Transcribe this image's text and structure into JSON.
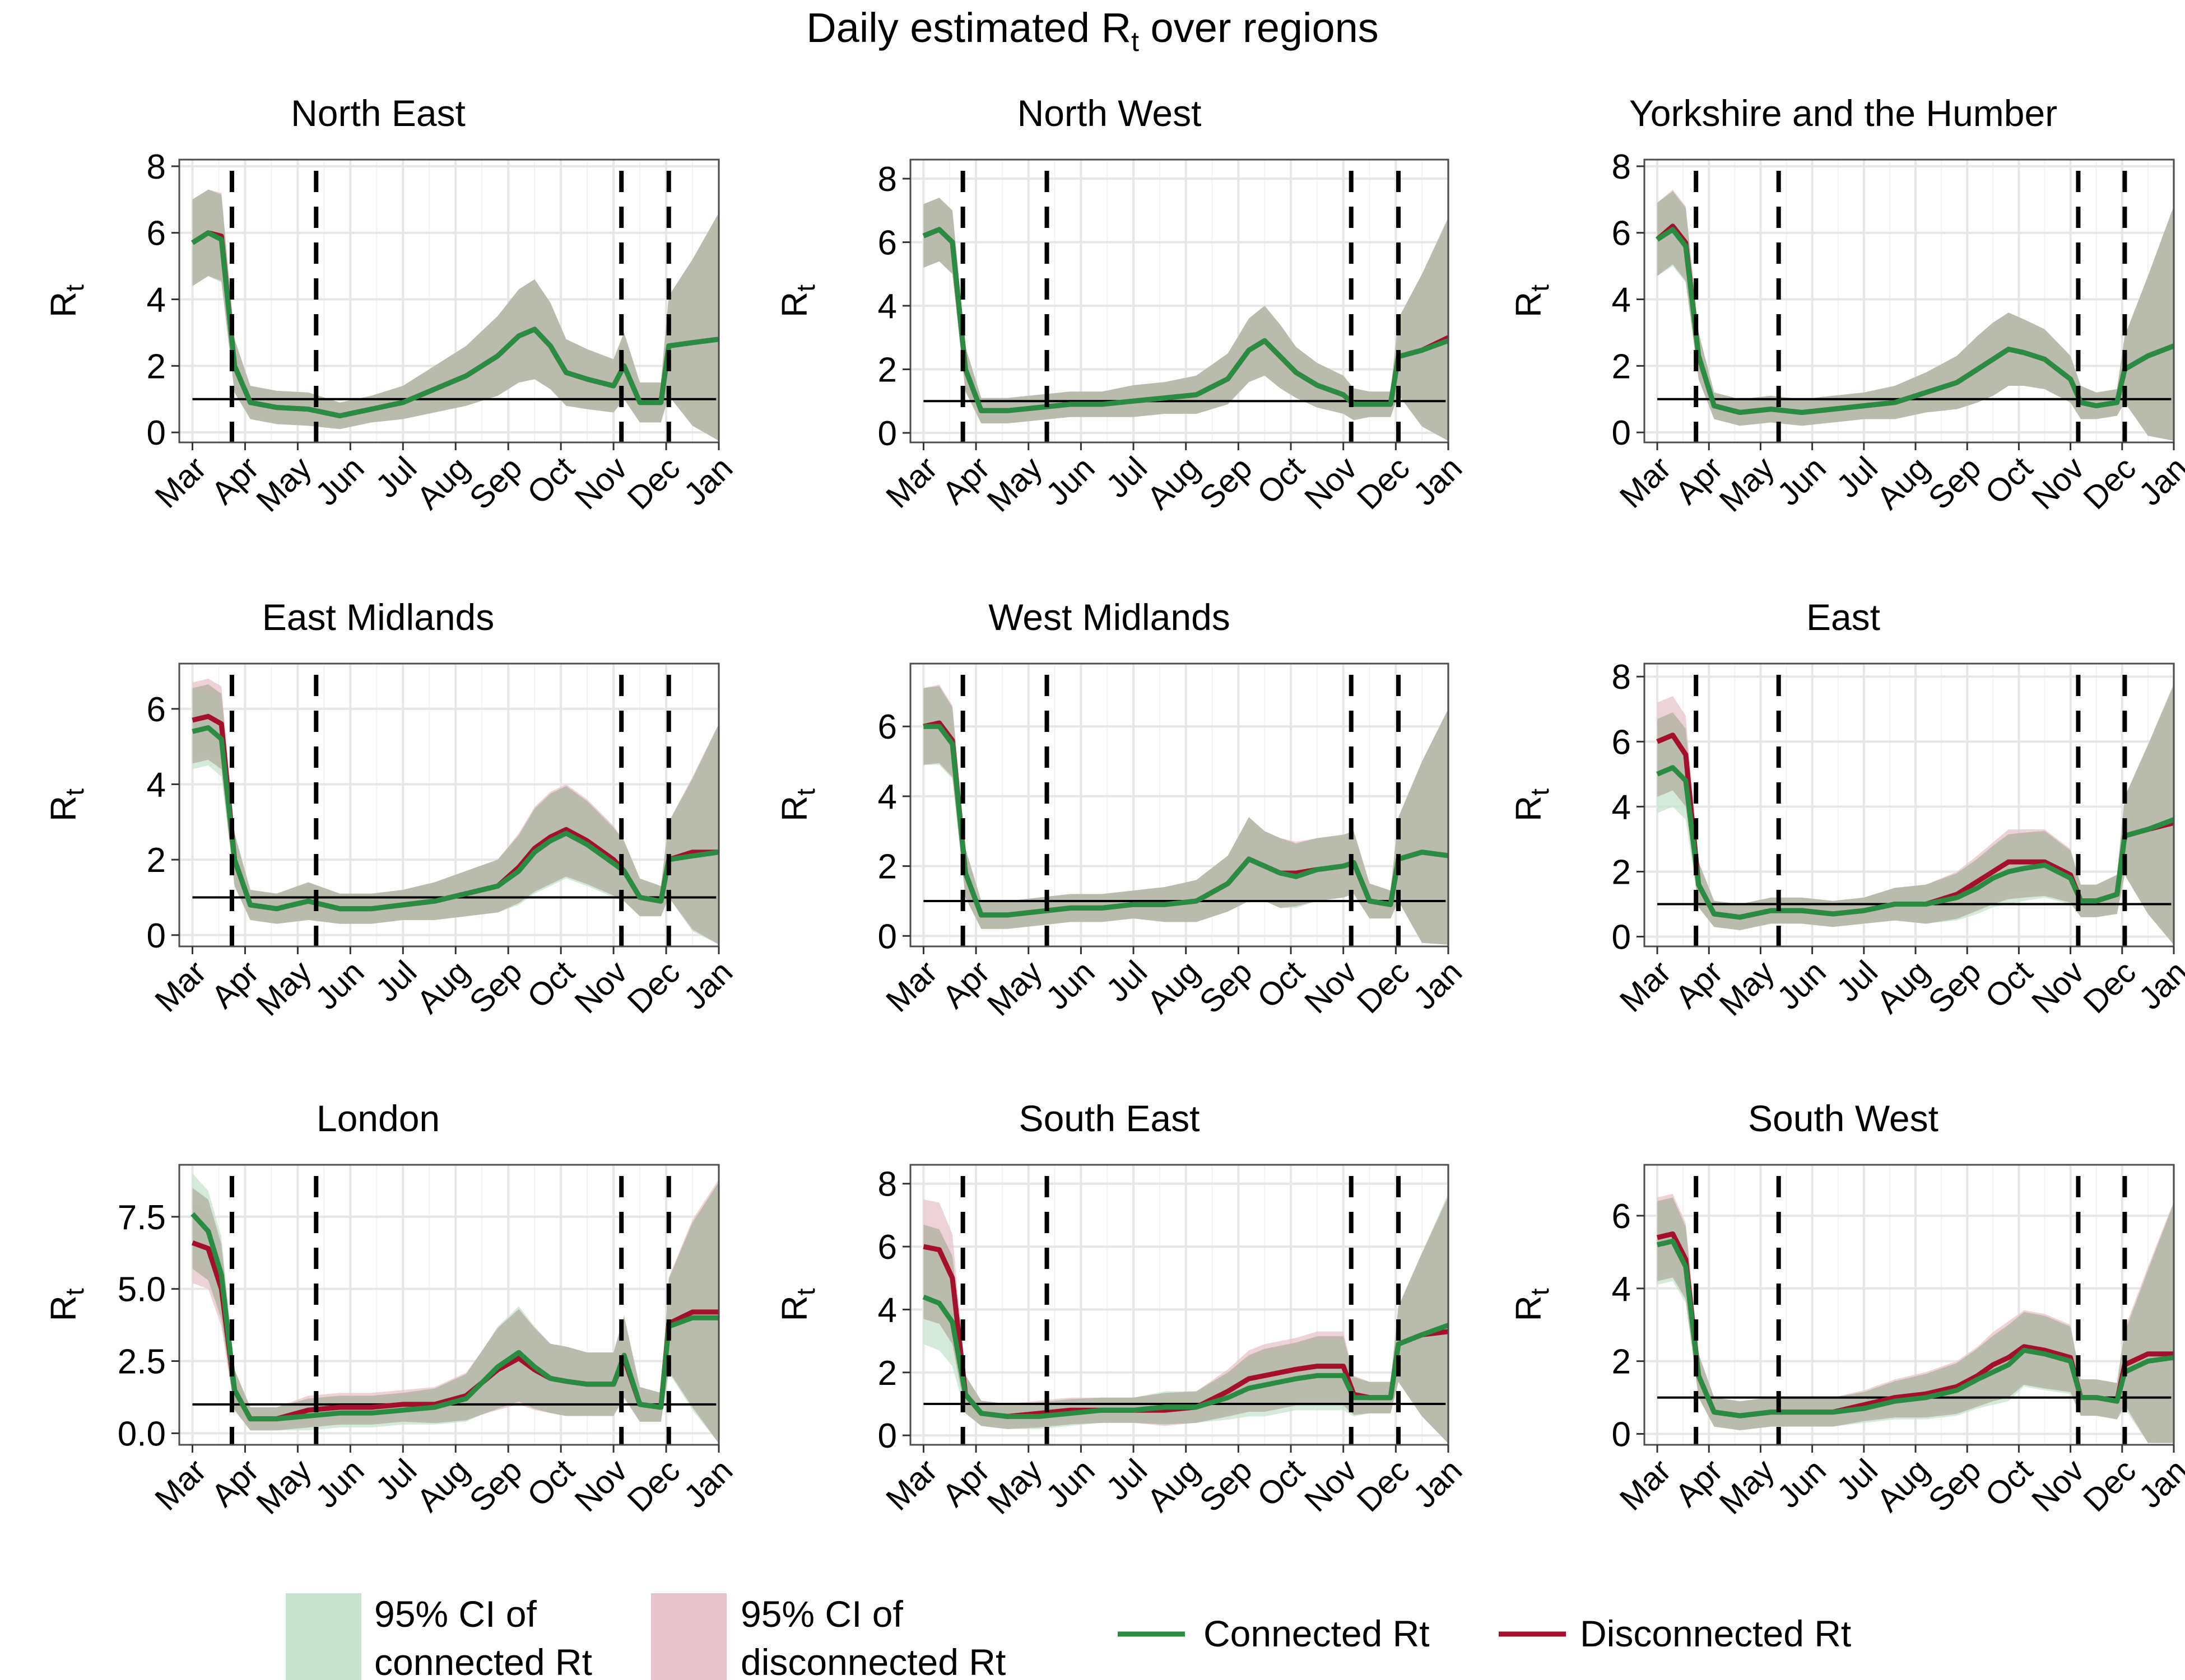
{
  "figure": {
    "title_main": "Daily estimated R",
    "title_sub": "t",
    "title_rest": " over regions",
    "ylabel_main": "R",
    "ylabel_sub": "t"
  },
  "legend": {
    "entries": [
      {
        "kind": "band",
        "color": "#c7e3cf",
        "lines": [
          "95% CI of",
          "connected Rt"
        ]
      },
      {
        "kind": "band",
        "color": "#e7c4cb",
        "lines": [
          "95% CI of",
          "disconnected Rt"
        ]
      },
      {
        "kind": "line",
        "color": "#2a8b43",
        "lines": [
          "Connected Rt"
        ]
      },
      {
        "kind": "line",
        "color": "#a40f2c",
        "lines": [
          "Disconnected Rt"
        ]
      }
    ]
  },
  "chart_data": {
    "type": "line",
    "x_unit": "month (2020; 3 = Mar)",
    "x_range": [
      2.75,
      13.0
    ],
    "x_ticks": [
      3,
      4,
      5,
      6,
      7,
      8,
      9,
      10,
      11,
      12,
      13
    ],
    "x_tick_labels": [
      "Mar",
      "Apr",
      "May",
      "Jun",
      "Jul",
      "Aug",
      "Sep",
      "Oct",
      "Nov",
      "Dec",
      "Jan"
    ],
    "intervention_lines_x": [
      3.75,
      5.35,
      11.15,
      12.05
    ],
    "reference_line_y": 1,
    "colors": {
      "connected": "#2a8b43",
      "disconnected": "#a40f2c",
      "ci_connected": "#c7e3cf",
      "ci_disconnected": "#e7c4cb",
      "ci_overlap": "#b3b2a2"
    },
    "panels": [
      {
        "title": "North East",
        "ylim": [
          -0.3,
          8.2
        ],
        "yticks": [
          0,
          2,
          4,
          6,
          8
        ],
        "ytick_labels": [
          "0",
          "2",
          "4",
          "6",
          "8"
        ],
        "x": [
          3.0,
          3.3,
          3.55,
          3.8,
          4.1,
          4.6,
          5.2,
          5.8,
          6.4,
          7.0,
          7.6,
          8.2,
          8.8,
          9.2,
          9.5,
          9.8,
          10.1,
          10.5,
          11.0,
          11.2,
          11.5,
          11.9,
          12.05,
          12.5,
          13.0
        ],
        "connected": [
          5.7,
          6.0,
          5.8,
          2.0,
          0.9,
          0.75,
          0.7,
          0.5,
          0.7,
          0.9,
          1.3,
          1.7,
          2.3,
          2.9,
          3.1,
          2.6,
          1.8,
          1.6,
          1.4,
          2.0,
          0.9,
          0.9,
          2.6,
          2.7,
          2.8
        ],
        "disconnected": [
          5.7,
          6.0,
          5.9,
          2.0,
          0.9,
          0.75,
          0.7,
          0.5,
          0.7,
          0.9,
          1.3,
          1.7,
          2.3,
          2.9,
          3.1,
          2.6,
          1.8,
          1.6,
          1.4,
          2.0,
          0.9,
          0.9,
          2.6,
          2.7,
          2.8
        ],
        "ci_width": [
          1.3,
          1.3,
          1.3,
          0.8,
          0.5,
          0.5,
          0.5,
          0.4,
          0.4,
          0.5,
          0.7,
          0.9,
          1.2,
          1.4,
          1.5,
          1.3,
          1.0,
          0.9,
          0.8,
          1.0,
          0.6,
          0.6,
          1.5,
          2.5,
          3.8
        ]
      },
      {
        "title": "North West",
        "ylim": [
          -0.3,
          8.6
        ],
        "yticks": [
          0,
          2,
          4,
          6,
          8
        ],
        "ytick_labels": [
          "0",
          "2",
          "4",
          "6",
          "8"
        ],
        "x": [
          3.0,
          3.3,
          3.55,
          3.8,
          4.1,
          4.6,
          5.2,
          5.8,
          6.4,
          7.0,
          7.6,
          8.2,
          8.8,
          9.2,
          9.5,
          9.8,
          10.1,
          10.5,
          11.0,
          11.2,
          11.5,
          11.9,
          12.05,
          12.5,
          13.0
        ],
        "connected": [
          6.2,
          6.4,
          6.0,
          2.0,
          0.7,
          0.7,
          0.8,
          0.9,
          0.9,
          1.0,
          1.1,
          1.2,
          1.7,
          2.6,
          2.9,
          2.4,
          1.9,
          1.5,
          1.2,
          0.9,
          0.9,
          0.9,
          2.4,
          2.6,
          2.9
        ],
        "disconnected": [
          6.2,
          6.4,
          6.0,
          2.0,
          0.7,
          0.7,
          0.8,
          0.9,
          0.9,
          1.0,
          1.1,
          1.2,
          1.7,
          2.6,
          2.9,
          2.4,
          1.9,
          1.5,
          1.2,
          0.9,
          0.9,
          0.9,
          2.4,
          2.6,
          3.0
        ],
        "ci_width": [
          1.0,
          1.0,
          1.0,
          0.7,
          0.4,
          0.4,
          0.4,
          0.4,
          0.4,
          0.5,
          0.5,
          0.6,
          0.8,
          1.0,
          1.1,
          1.0,
          0.8,
          0.7,
          0.6,
          0.5,
          0.4,
          0.4,
          1.2,
          2.4,
          3.8
        ]
      },
      {
        "title": "Yorkshire and the Humber",
        "ylim": [
          -0.3,
          8.2
        ],
        "yticks": [
          0,
          2,
          4,
          6,
          8
        ],
        "ytick_labels": [
          "0",
          "2",
          "4",
          "6",
          "8"
        ],
        "x": [
          3.0,
          3.3,
          3.55,
          3.8,
          4.1,
          4.6,
          5.2,
          5.8,
          6.4,
          7.0,
          7.6,
          8.2,
          8.8,
          9.2,
          9.5,
          9.8,
          10.1,
          10.5,
          11.0,
          11.2,
          11.5,
          11.9,
          12.05,
          12.5,
          13.0
        ],
        "connected": [
          5.8,
          6.1,
          5.6,
          2.3,
          0.8,
          0.6,
          0.7,
          0.6,
          0.7,
          0.8,
          0.9,
          1.2,
          1.5,
          1.9,
          2.2,
          2.5,
          2.4,
          2.2,
          1.6,
          0.9,
          0.8,
          0.9,
          1.9,
          2.3,
          2.6
        ],
        "disconnected": [
          5.8,
          6.2,
          5.7,
          2.3,
          0.8,
          0.6,
          0.7,
          0.6,
          0.7,
          0.8,
          0.9,
          1.2,
          1.5,
          1.9,
          2.2,
          2.5,
          2.4,
          2.2,
          1.6,
          0.9,
          0.8,
          0.9,
          1.9,
          2.3,
          2.6
        ],
        "ci_width": [
          1.1,
          1.1,
          1.1,
          0.7,
          0.4,
          0.4,
          0.4,
          0.4,
          0.4,
          0.4,
          0.5,
          0.6,
          0.8,
          1.0,
          1.1,
          1.1,
          1.0,
          0.9,
          0.7,
          0.5,
          0.4,
          0.4,
          1.0,
          2.4,
          4.2
        ]
      },
      {
        "title": "East Midlands",
        "ylim": [
          -0.3,
          7.2
        ],
        "yticks": [
          0,
          2,
          4,
          6
        ],
        "ytick_labels": [
          "0",
          "2",
          "4",
          "6"
        ],
        "x": [
          3.0,
          3.3,
          3.55,
          3.8,
          4.1,
          4.6,
          5.2,
          5.8,
          6.4,
          7.0,
          7.6,
          8.2,
          8.8,
          9.2,
          9.5,
          9.8,
          10.1,
          10.5,
          11.0,
          11.2,
          11.5,
          11.9,
          12.05,
          12.5,
          13.0
        ],
        "connected": [
          5.4,
          5.5,
          5.2,
          2.0,
          0.8,
          0.7,
          0.9,
          0.7,
          0.7,
          0.8,
          0.9,
          1.1,
          1.3,
          1.7,
          2.2,
          2.5,
          2.7,
          2.4,
          1.9,
          1.7,
          1.0,
          0.9,
          2.0,
          2.1,
          2.2
        ],
        "disconnected": [
          5.7,
          5.8,
          5.6,
          2.0,
          0.8,
          0.7,
          0.9,
          0.7,
          0.7,
          0.8,
          0.9,
          1.1,
          1.3,
          1.8,
          2.3,
          2.6,
          2.8,
          2.5,
          2.0,
          1.7,
          1.0,
          0.9,
          2.0,
          2.2,
          2.2
        ],
        "ci_width": [
          1.0,
          1.0,
          1.0,
          0.7,
          0.4,
          0.4,
          0.5,
          0.4,
          0.4,
          0.4,
          0.5,
          0.6,
          0.7,
          0.9,
          1.1,
          1.2,
          1.2,
          1.1,
          0.9,
          0.8,
          0.5,
          0.4,
          1.0,
          2.0,
          3.4
        ]
      },
      {
        "title": "West Midlands",
        "ylim": [
          -0.3,
          7.8
        ],
        "yticks": [
          0,
          2,
          4,
          6
        ],
        "ytick_labels": [
          "0",
          "2",
          "4",
          "6"
        ],
        "x": [
          3.0,
          3.3,
          3.55,
          3.8,
          4.1,
          4.6,
          5.2,
          5.8,
          6.4,
          7.0,
          7.6,
          8.2,
          8.8,
          9.2,
          9.5,
          9.8,
          10.1,
          10.5,
          11.0,
          11.2,
          11.5,
          11.9,
          12.05,
          12.5,
          13.0
        ],
        "connected": [
          6.0,
          6.0,
          5.5,
          1.8,
          0.6,
          0.6,
          0.7,
          0.8,
          0.8,
          0.9,
          0.9,
          1.0,
          1.5,
          2.2,
          2.0,
          1.8,
          1.7,
          1.9,
          2.0,
          2.1,
          1.0,
          0.9,
          2.2,
          2.4,
          2.3
        ],
        "disconnected": [
          6.0,
          6.1,
          5.6,
          1.8,
          0.6,
          0.6,
          0.7,
          0.8,
          0.8,
          0.9,
          0.9,
          1.0,
          1.5,
          2.2,
          2.0,
          1.8,
          1.8,
          1.9,
          2.0,
          2.1,
          1.0,
          0.9,
          2.2,
          2.4,
          2.3
        ],
        "ci_width": [
          1.1,
          1.1,
          1.0,
          0.7,
          0.4,
          0.4,
          0.4,
          0.4,
          0.4,
          0.4,
          0.5,
          0.6,
          0.8,
          1.2,
          1.0,
          1.0,
          0.9,
          0.9,
          0.9,
          0.9,
          0.5,
          0.4,
          1.2,
          2.6,
          4.2
        ]
      },
      {
        "title": "East",
        "ylim": [
          -0.3,
          8.4
        ],
        "yticks": [
          0,
          2,
          4,
          6,
          8
        ],
        "ytick_labels": [
          "0",
          "2",
          "4",
          "6",
          "8"
        ],
        "x": [
          3.0,
          3.3,
          3.55,
          3.8,
          4.1,
          4.6,
          5.2,
          5.8,
          6.4,
          7.0,
          7.6,
          8.2,
          8.8,
          9.2,
          9.5,
          9.8,
          10.1,
          10.5,
          11.0,
          11.2,
          11.5,
          11.9,
          12.05,
          12.5,
          13.0
        ],
        "connected": [
          5.0,
          5.2,
          4.8,
          1.6,
          0.7,
          0.6,
          0.8,
          0.8,
          0.7,
          0.8,
          1.0,
          1.0,
          1.2,
          1.5,
          1.8,
          2.0,
          2.1,
          2.2,
          1.8,
          1.1,
          1.1,
          1.3,
          3.1,
          3.3,
          3.6
        ],
        "disconnected": [
          6.0,
          6.2,
          5.6,
          1.6,
          0.7,
          0.6,
          0.8,
          0.8,
          0.7,
          0.8,
          1.0,
          1.0,
          1.3,
          1.7,
          2.0,
          2.3,
          2.3,
          2.3,
          1.9,
          1.1,
          1.1,
          1.3,
          3.1,
          3.3,
          3.5
        ],
        "ci_width": [
          1.2,
          1.2,
          1.2,
          0.7,
          0.4,
          0.4,
          0.4,
          0.4,
          0.4,
          0.4,
          0.5,
          0.6,
          0.7,
          0.8,
          0.9,
          1.0,
          1.0,
          1.0,
          0.8,
          0.5,
          0.5,
          0.6,
          1.2,
          2.6,
          4.2
        ]
      },
      {
        "title": "London",
        "ylim": [
          -0.4,
          9.3
        ],
        "yticks": [
          0,
          2.5,
          5,
          7.5
        ],
        "ytick_labels": [
          "0.0",
          "2.5",
          "5.0",
          "7.5"
        ],
        "x": [
          3.0,
          3.3,
          3.55,
          3.8,
          4.1,
          4.6,
          5.2,
          5.8,
          6.4,
          7.0,
          7.6,
          8.2,
          8.8,
          9.2,
          9.5,
          9.8,
          10.1,
          10.5,
          11.0,
          11.2,
          11.5,
          11.9,
          12.05,
          12.5,
          13.0
        ],
        "connected": [
          7.6,
          7.0,
          5.5,
          1.5,
          0.5,
          0.5,
          0.6,
          0.7,
          0.7,
          0.8,
          0.9,
          1.2,
          2.3,
          2.8,
          2.3,
          1.9,
          1.8,
          1.7,
          1.7,
          2.7,
          1.0,
          0.9,
          3.7,
          4.0,
          4.0
        ],
        "disconnected": [
          6.6,
          6.4,
          5.0,
          1.5,
          0.5,
          0.5,
          0.8,
          0.9,
          0.9,
          1.0,
          1.0,
          1.3,
          2.2,
          2.6,
          2.2,
          1.9,
          1.8,
          1.7,
          1.7,
          2.6,
          1.0,
          0.9,
          3.8,
          4.2,
          4.2
        ],
        "ci_width": [
          1.4,
          1.4,
          1.3,
          0.7,
          0.4,
          0.4,
          0.5,
          0.5,
          0.5,
          0.5,
          0.6,
          0.8,
          1.4,
          1.6,
          1.4,
          1.2,
          1.2,
          1.1,
          1.1,
          1.4,
          0.6,
          0.5,
          1.6,
          3.2,
          4.6
        ]
      },
      {
        "title": "South East",
        "ylim": [
          -0.3,
          8.6
        ],
        "yticks": [
          0,
          2,
          4,
          6,
          8
        ],
        "ytick_labels": [
          "0",
          "2",
          "4",
          "6",
          "8"
        ],
        "x": [
          3.0,
          3.3,
          3.55,
          3.8,
          4.1,
          4.6,
          5.2,
          5.8,
          6.4,
          7.0,
          7.6,
          8.2,
          8.8,
          9.2,
          9.5,
          9.8,
          10.1,
          10.5,
          11.0,
          11.2,
          11.5,
          11.9,
          12.05,
          12.5,
          13.0
        ],
        "connected": [
          4.4,
          4.2,
          3.6,
          1.3,
          0.7,
          0.6,
          0.6,
          0.7,
          0.8,
          0.8,
          0.9,
          0.9,
          1.2,
          1.5,
          1.6,
          1.7,
          1.8,
          1.9,
          1.9,
          1.2,
          1.2,
          1.2,
          2.9,
          3.2,
          3.5
        ],
        "disconnected": [
          6.0,
          5.9,
          5.0,
          1.3,
          0.7,
          0.6,
          0.7,
          0.8,
          0.8,
          0.8,
          0.8,
          0.9,
          1.4,
          1.8,
          1.9,
          2.0,
          2.1,
          2.2,
          2.2,
          1.3,
          1.2,
          1.2,
          2.9,
          3.2,
          3.3
        ],
        "ci_width": [
          1.5,
          1.5,
          1.4,
          0.6,
          0.4,
          0.4,
          0.4,
          0.4,
          0.4,
          0.4,
          0.5,
          0.5,
          0.7,
          0.9,
          1.0,
          1.0,
          1.0,
          1.1,
          1.1,
          0.6,
          0.5,
          0.5,
          1.2,
          2.6,
          4.2
        ]
      },
      {
        "title": "South West",
        "ylim": [
          -0.3,
          7.4
        ],
        "yticks": [
          0,
          2,
          4,
          6
        ],
        "ytick_labels": [
          "0",
          "2",
          "4",
          "6"
        ],
        "x": [
          3.0,
          3.3,
          3.55,
          3.8,
          4.1,
          4.6,
          5.2,
          5.8,
          6.4,
          7.0,
          7.6,
          8.2,
          8.8,
          9.2,
          9.5,
          9.8,
          10.1,
          10.5,
          11.0,
          11.2,
          11.5,
          11.9,
          12.05,
          12.5,
          13.0
        ],
        "connected": [
          5.2,
          5.3,
          4.6,
          1.6,
          0.6,
          0.5,
          0.6,
          0.6,
          0.6,
          0.7,
          0.9,
          1.0,
          1.2,
          1.5,
          1.7,
          1.9,
          2.3,
          2.2,
          2.0,
          1.0,
          1.0,
          0.9,
          1.7,
          2.0,
          2.1
        ],
        "disconnected": [
          5.4,
          5.5,
          4.8,
          1.6,
          0.6,
          0.5,
          0.6,
          0.6,
          0.6,
          0.8,
          1.0,
          1.1,
          1.3,
          1.6,
          1.9,
          2.1,
          2.4,
          2.3,
          2.1,
          1.0,
          1.0,
          0.9,
          1.9,
          2.2,
          2.2
        ],
        "ci_width": [
          1.1,
          1.1,
          1.0,
          0.6,
          0.4,
          0.4,
          0.4,
          0.4,
          0.4,
          0.4,
          0.5,
          0.6,
          0.7,
          0.8,
          0.9,
          1.0,
          1.0,
          1.0,
          0.9,
          0.5,
          0.5,
          0.5,
          1.0,
          2.4,
          4.2
        ]
      }
    ]
  }
}
